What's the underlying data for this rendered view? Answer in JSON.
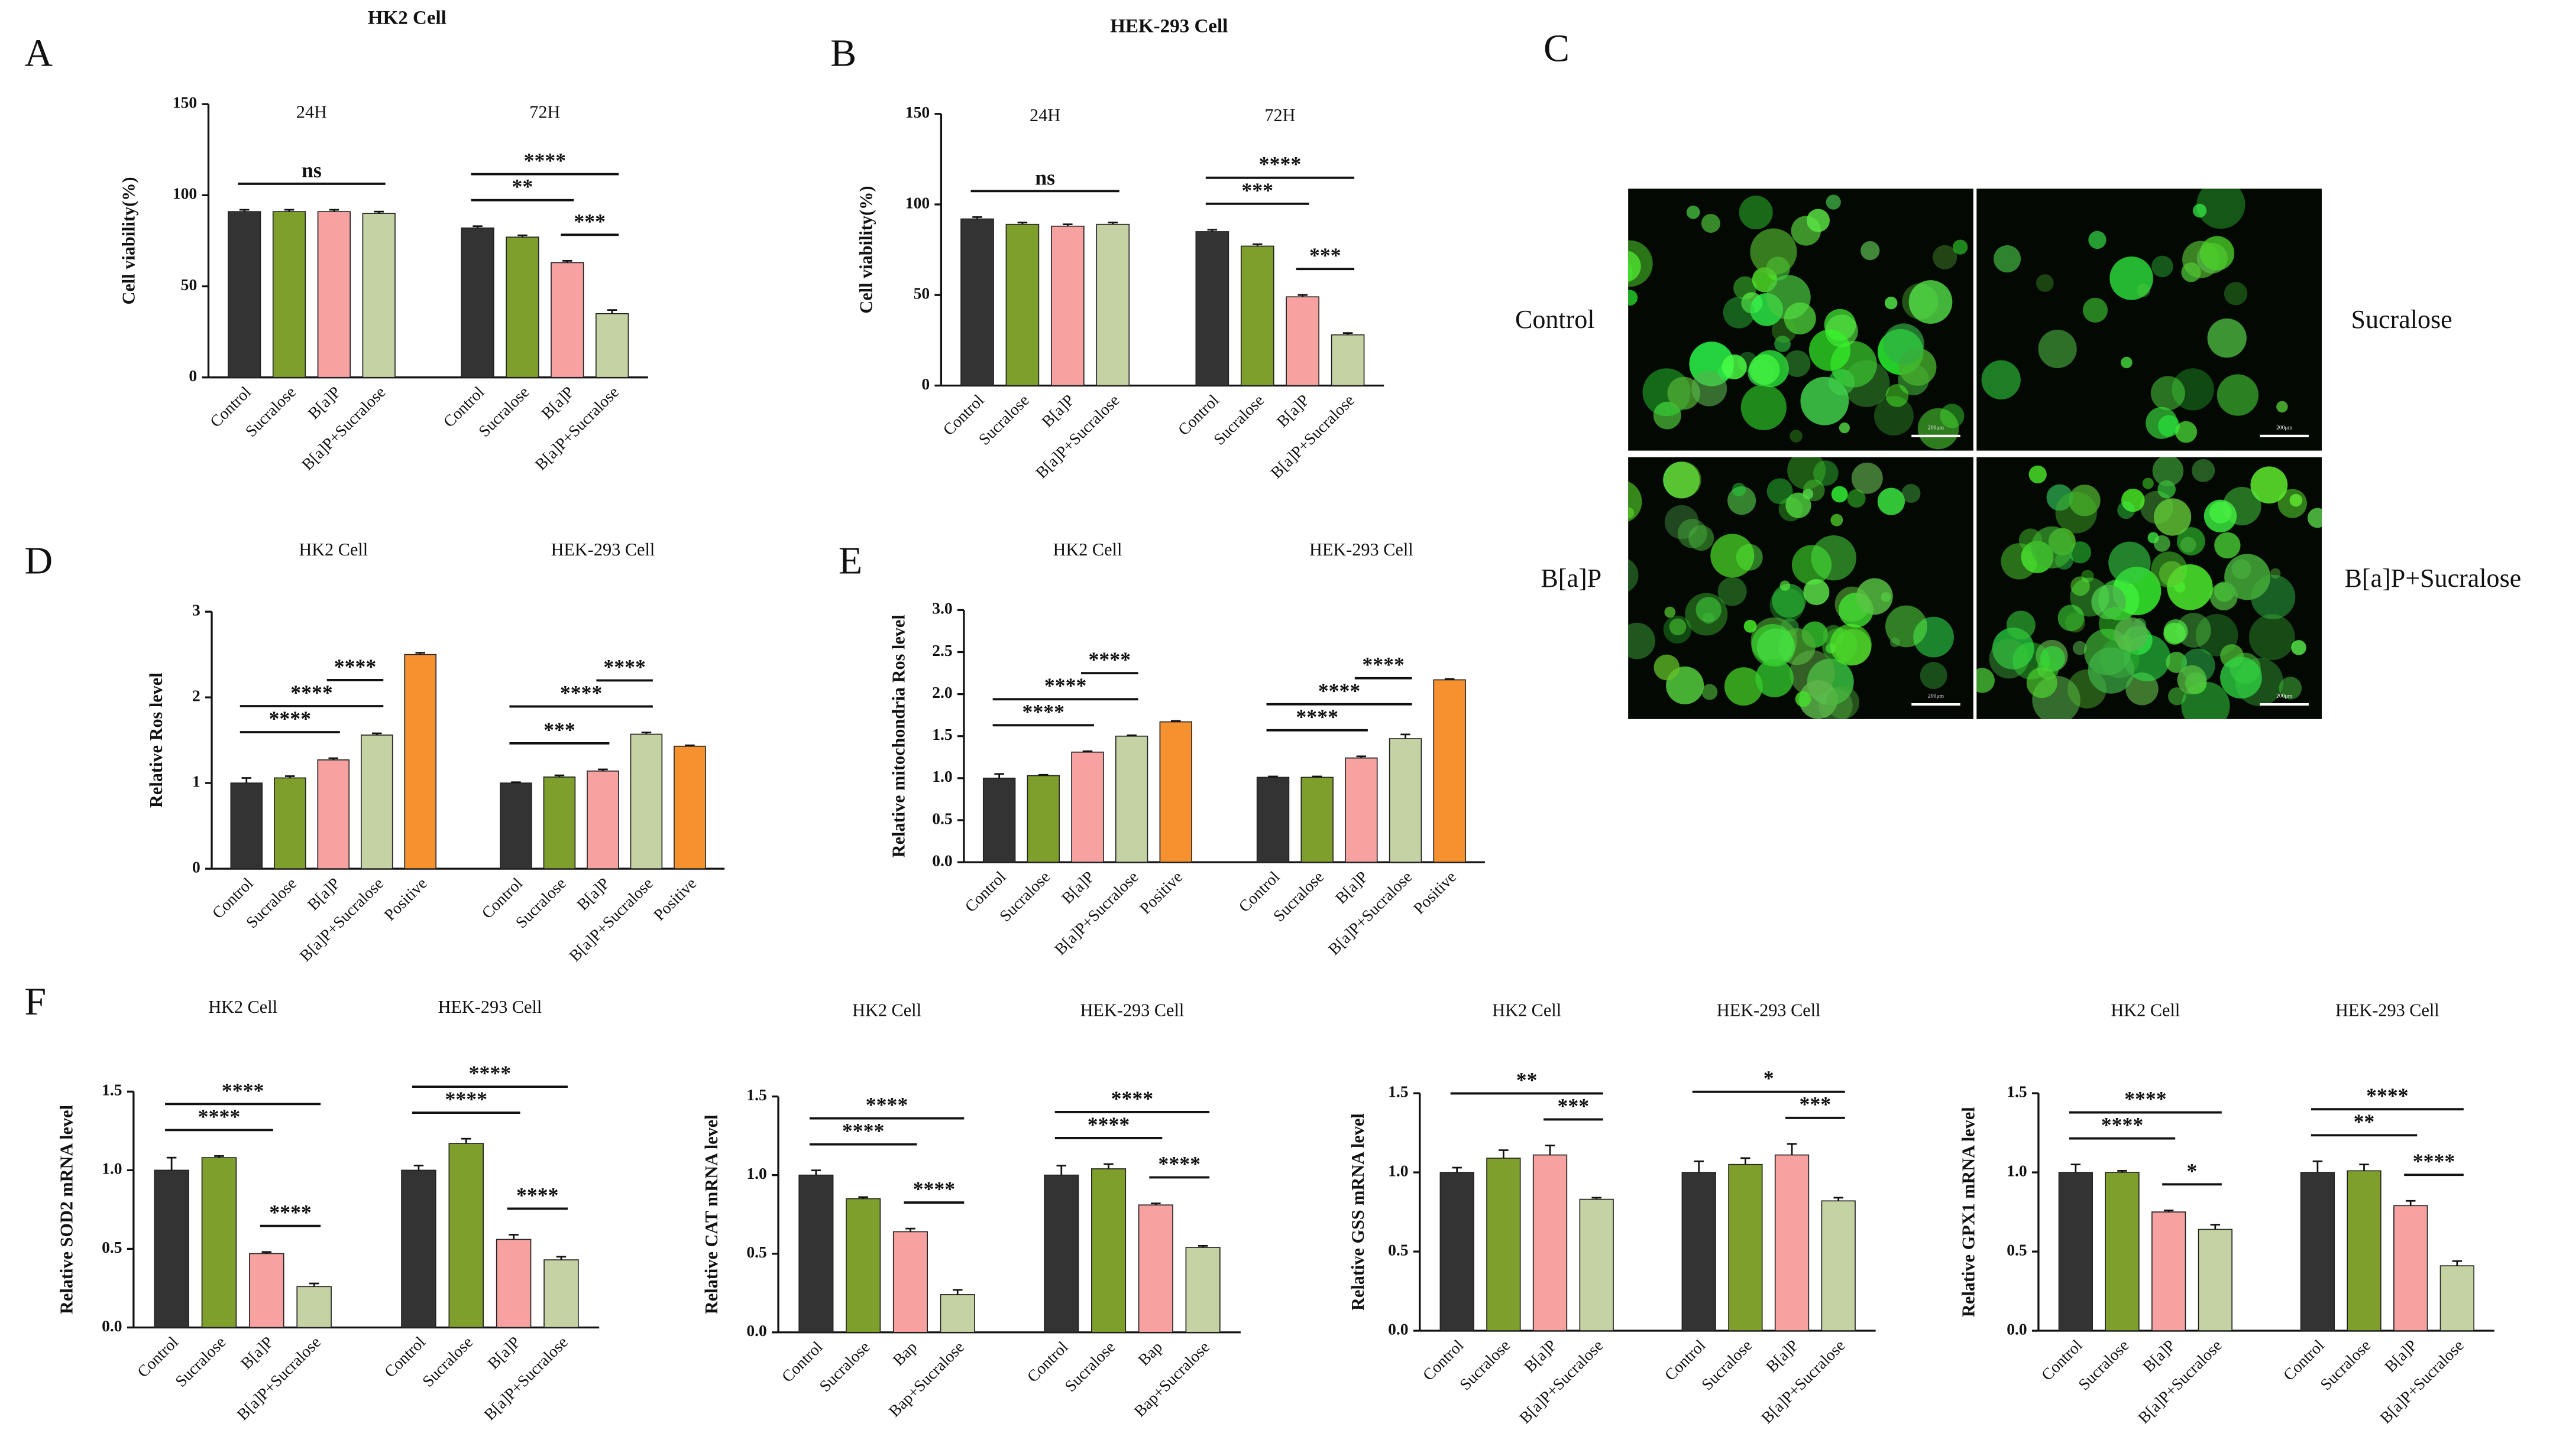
{
  "chart_data": [
    {
      "type": "bar",
      "panel": "A",
      "title": "HK2 Cell",
      "y_label": "Cell viability(%)",
      "categories": [
        "Control",
        "Sucralose",
        "B[a]P",
        "B[a]P+Sucralose"
      ],
      "colors": [
        "#333333",
        "#7f9f2c",
        "#f7a1a1",
        "#c5d2a3"
      ],
      "ylim": [
        0,
        150
      ],
      "yticks": [
        0,
        50,
        100,
        150
      ],
      "groups": [
        {
          "name": "24H",
          "values": [
            91,
            91,
            91,
            90
          ],
          "errors": [
            1,
            1,
            1,
            1
          ],
          "annotations": [
            {
              "label": "ns",
              "from": "Control",
              "to": "B[a]P+Sucralose"
            }
          ]
        },
        {
          "name": "72H",
          "values": [
            82,
            77,
            63,
            35
          ],
          "errors": [
            1,
            1,
            1,
            2
          ],
          "annotations": [
            {
              "label": "***",
              "from": "B[a]P",
              "to": "B[a]P+Sucralose"
            },
            {
              "label": "**",
              "from": "Control",
              "to": "B[a]P"
            },
            {
              "label": "****",
              "from": "Control",
              "to": "B[a]P+Sucralose"
            }
          ]
        }
      ]
    },
    {
      "type": "bar",
      "panel": "B",
      "title": "HEK-293 Cell",
      "y_label": "Cell viability(%)",
      "categories": [
        "Control",
        "Sucralose",
        "B[a]P",
        "B[a]P+Sucralose"
      ],
      "colors": [
        "#333333",
        "#7f9f2c",
        "#f7a1a1",
        "#c5d2a3"
      ],
      "ylim": [
        0,
        150
      ],
      "yticks": [
        0,
        50,
        100,
        150
      ],
      "groups": [
        {
          "name": "24H",
          "values": [
            92,
            89,
            88,
            89
          ],
          "errors": [
            1,
            1,
            1,
            1
          ],
          "annotations": [
            {
              "label": "ns",
              "from": "Control",
              "to": "B[a]P+Sucralose"
            }
          ]
        },
        {
          "name": "72H",
          "values": [
            85,
            77,
            49,
            28
          ],
          "errors": [
            1,
            1,
            1,
            1
          ],
          "annotations": [
            {
              "label": "***",
              "from": "B[a]P",
              "to": "B[a]P+Sucralose"
            },
            {
              "label": "***",
              "from": "Control",
              "to": "B[a]P"
            },
            {
              "label": "****",
              "from": "Control",
              "to": "B[a]P+Sucralose"
            }
          ]
        }
      ]
    },
    {
      "type": "image",
      "panel": "C",
      "labels": [
        "Control",
        "Sucralose",
        "B[a]P",
        "B[a]P+Sucralose"
      ],
      "scale_bar": "200μm"
    },
    {
      "type": "bar",
      "panel": "D",
      "y_label": "Relative Ros level",
      "categories": [
        "Control",
        "Sucralose",
        "B[a]P",
        "B[a]P+Sucralose",
        "Positive"
      ],
      "colors": [
        "#333333",
        "#7f9f2c",
        "#f7a1a1",
        "#c5d2a3",
        "#f5912f"
      ],
      "ylim": [
        0,
        3
      ],
      "yticks": [
        0,
        1,
        2,
        3
      ],
      "groups": [
        {
          "name": "HK2 Cell",
          "values": [
            1.0,
            1.06,
            1.27,
            1.56,
            2.5
          ],
          "errors": [
            0.06,
            0.02,
            0.02,
            0.02,
            0.02
          ],
          "annotations": [
            {
              "label": "****",
              "from": "Control",
              "to": "B[a]P"
            },
            {
              "label": "****",
              "from": "Control",
              "to": "B[a]P+Sucralose"
            },
            {
              "label": "****",
              "from": "B[a]P",
              "to": "B[a]P+Sucralose"
            }
          ]
        },
        {
          "name": "HEK-293 Cell",
          "values": [
            1.0,
            1.07,
            1.14,
            1.57,
            1.43
          ],
          "errors": [
            0.01,
            0.02,
            0.02,
            0.02,
            0.01
          ],
          "annotations": [
            {
              "label": "***",
              "from": "Control",
              "to": "B[a]P"
            },
            {
              "label": "****",
              "from": "Control",
              "to": "B[a]P+Sucralose"
            },
            {
              "label": "****",
              "from": "B[a]P",
              "to": "B[a]P+Sucralose"
            }
          ]
        }
      ]
    },
    {
      "type": "bar",
      "panel": "E",
      "y_label": "Relative mitochondria Ros level",
      "categories": [
        "Control",
        "Sucralose",
        "B[a]P",
        "B[a]P+Sucralose",
        "Positive"
      ],
      "colors": [
        "#333333",
        "#7f9f2c",
        "#f7a1a1",
        "#c5d2a3",
        "#f5912f"
      ],
      "ylim": [
        0,
        3
      ],
      "yticks": [
        {
          "value": 0,
          "label": "0.0"
        },
        {
          "value": 0.5,
          "label": "0.5"
        },
        {
          "value": 1,
          "label": "1.0"
        },
        {
          "value": 1.5,
          "label": "1.5"
        },
        {
          "value": 2,
          "label": "2.0"
        },
        {
          "value": 2.5,
          "label": "2.5"
        },
        {
          "value": 3,
          "label": "3.0"
        }
      ],
      "groups": [
        {
          "name": "HK2 Cell",
          "values": [
            1.0,
            1.03,
            1.31,
            1.5,
            1.67
          ],
          "errors": [
            0.05,
            0.01,
            0.01,
            0.01,
            0.01
          ],
          "annotations": [
            {
              "label": "****",
              "from": "Control",
              "to": "B[a]P"
            },
            {
              "label": "****",
              "from": "Control",
              "to": "B[a]P+Sucralose"
            },
            {
              "label": "****",
              "from": "B[a]P",
              "to": "B[a]P+Sucralose"
            }
          ]
        },
        {
          "name": "HEK-293 Cell",
          "values": [
            1.01,
            1.01,
            1.24,
            1.47,
            2.17
          ],
          "errors": [
            0.01,
            0.01,
            0.02,
            0.05,
            0.01
          ],
          "annotations": [
            {
              "label": "****",
              "from": "Control",
              "to": "B[a]P"
            },
            {
              "label": "****",
              "from": "Control",
              "to": "B[a]P+Sucralose"
            },
            {
              "label": "****",
              "from": "B[a]P",
              "to": "B[a]P+Sucralose"
            }
          ]
        }
      ]
    },
    {
      "type": "bar",
      "panel": "F",
      "y_label": "Relative SOD2 mRNA level",
      "categories": [
        "Control",
        "Sucralose",
        "B[a]P",
        "B[a]P+Sucralose"
      ],
      "colors": [
        "#333333",
        "#7f9f2c",
        "#f7a1a1",
        "#c5d2a3"
      ],
      "ylim": [
        0,
        1.5
      ],
      "yticks": [
        {
          "value": 0,
          "label": "0.0"
        },
        {
          "value": 0.5,
          "label": "0.5"
        },
        {
          "value": 1,
          "label": "1.0"
        },
        {
          "value": 1.5,
          "label": "1.5"
        }
      ],
      "groups": [
        {
          "name": "HK2 Cell",
          "values": [
            1.0,
            1.08,
            0.47,
            0.26
          ],
          "errors": [
            0.08,
            0.01,
            0.01,
            0.02
          ],
          "annotations": [
            {
              "label": "****",
              "from": "B[a]P",
              "to": "B[a]P+Sucralose"
            },
            {
              "label": "****",
              "from": "Control",
              "to": "B[a]P"
            },
            {
              "label": "****",
              "from": "Control",
              "to": "B[a]P+Sucralose"
            }
          ]
        },
        {
          "name": "HEK-293 Cell",
          "values": [
            1.0,
            1.17,
            0.56,
            0.43
          ],
          "errors": [
            0.03,
            0.03,
            0.03,
            0.02
          ],
          "annotations": [
            {
              "label": "****",
              "from": "B[a]P",
              "to": "B[a]P+Sucralose"
            },
            {
              "label": "****",
              "from": "Control",
              "to": "B[a]P"
            },
            {
              "label": "****",
              "from": "Control",
              "to": "B[a]P+Sucralose"
            }
          ]
        }
      ]
    },
    {
      "type": "bar",
      "y_label": "Relative CAT mRNA level",
      "categories": [
        "Control",
        "Sucralose",
        "Bap",
        "Bap+Sucralose"
      ],
      "colors": [
        "#333333",
        "#7f9f2c",
        "#f7a1a1",
        "#c5d2a3"
      ],
      "ylim": [
        0,
        1.5
      ],
      "yticks": [
        {
          "value": 0,
          "label": "0.0"
        },
        {
          "value": 0.5,
          "label": "0.5"
        },
        {
          "value": 1,
          "label": "1.0"
        },
        {
          "value": 1.5,
          "label": "1.5"
        }
      ],
      "groups": [
        {
          "name": "HK2 Cell",
          "values": [
            1.0,
            0.85,
            0.64,
            0.24
          ],
          "errors": [
            0.03,
            0.01,
            0.02,
            0.03
          ],
          "annotations": [
            {
              "label": "****",
              "from": "Bap",
              "to": "Bap+Sucralose"
            },
            {
              "label": "****",
              "from": "Control",
              "to": "Bap"
            },
            {
              "label": "****",
              "from": "Control",
              "to": "Bap+Sucralose"
            }
          ]
        },
        {
          "name": "HEK-293 Cell",
          "values": [
            1.0,
            1.04,
            0.81,
            0.54
          ],
          "errors": [
            0.06,
            0.03,
            0.01,
            0.01
          ],
          "annotations": [
            {
              "label": "****",
              "from": "Bap",
              "to": "Bap+Sucralose"
            },
            {
              "label": "****",
              "from": "Control",
              "to": "Bap"
            },
            {
              "label": "****",
              "from": "Control",
              "to": "Bap+Sucralose"
            }
          ]
        }
      ]
    },
    {
      "type": "bar",
      "y_label": "Relative GSS mRNA level",
      "categories": [
        "Control",
        "Sucralose",
        "B[a]P",
        "B[a]P+Sucralose"
      ],
      "colors": [
        "#333333",
        "#7f9f2c",
        "#f7a1a1",
        "#c5d2a3"
      ],
      "ylim": [
        0,
        1.5
      ],
      "yticks": [
        {
          "value": 0,
          "label": "0.0"
        },
        {
          "value": 0.5,
          "label": "0.5"
        },
        {
          "value": 1,
          "label": "1.0"
        },
        {
          "value": 1.5,
          "label": "1.5"
        }
      ],
      "groups": [
        {
          "name": "HK2 Cell",
          "values": [
            1.0,
            1.09,
            1.11,
            0.83
          ],
          "errors": [
            0.03,
            0.05,
            0.06,
            0.01
          ],
          "annotations": [
            {
              "label": "***",
              "from": "B[a]P",
              "to": "B[a]P+Sucralose"
            },
            {
              "label": "**",
              "from": "Control",
              "to": "B[a]P+Sucralose"
            }
          ]
        },
        {
          "name": "HEK-293 Cell",
          "values": [
            1.0,
            1.05,
            1.11,
            0.82
          ],
          "errors": [
            0.07,
            0.04,
            0.07,
            0.02
          ],
          "annotations": [
            {
              "label": "***",
              "from": "B[a]P",
              "to": "B[a]P+Sucralose"
            },
            {
              "label": "*",
              "from": "Control",
              "to": "B[a]P+Sucralose"
            }
          ]
        }
      ]
    },
    {
      "type": "bar",
      "y_label": "Relative GPX1 mRNA level",
      "categories": [
        "Control",
        "Sucralose",
        "B[a]P",
        "B[a]P+Sucralose"
      ],
      "colors": [
        "#333333",
        "#7f9f2c",
        "#f7a1a1",
        "#c5d2a3"
      ],
      "ylim": [
        0,
        1.5
      ],
      "yticks": [
        {
          "value": 0,
          "label": "0.0"
        },
        {
          "value": 0.5,
          "label": "0.5"
        },
        {
          "value": 1,
          "label": "1.0"
        },
        {
          "value": 1.5,
          "label": "1.5"
        }
      ],
      "groups": [
        {
          "name": "HK2 Cell",
          "values": [
            1.0,
            1.0,
            0.75,
            0.64
          ],
          "errors": [
            0.05,
            0.01,
            0.01,
            0.03
          ],
          "annotations": [
            {
              "label": "*",
              "from": "B[a]P",
              "to": "B[a]P+Sucralose"
            },
            {
              "label": "****",
              "from": "Control",
              "to": "B[a]P"
            },
            {
              "label": "****",
              "from": "Control",
              "to": "B[a]P+Sucralose"
            }
          ]
        },
        {
          "name": "HEK-293 Cell",
          "values": [
            1.0,
            1.01,
            0.79,
            0.41
          ],
          "errors": [
            0.07,
            0.04,
            0.03,
            0.03
          ],
          "annotations": [
            {
              "label": "****",
              "from": "B[a]P",
              "to": "B[a]P+Sucralose"
            },
            {
              "label": "**",
              "from": "Control",
              "to": "B[a]P"
            },
            {
              "label": "****",
              "from": "Control",
              "to": "B[a]P+Sucralose"
            }
          ]
        }
      ]
    }
  ]
}
